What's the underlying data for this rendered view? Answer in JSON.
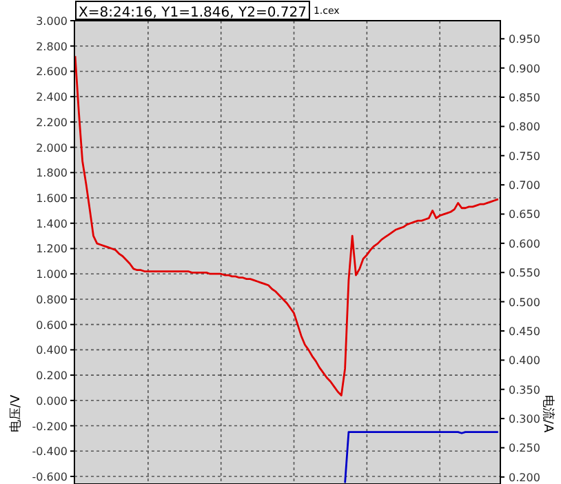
{
  "chart_data": {
    "type": "line",
    "ylabel": "电压/V",
    "y2label": "电流/A",
    "annotations": [
      "X=8:24:16, Y1=1.846, Y2=0.727",
      "1.cex"
    ],
    "categories": [
      null,
      null,
      null,
      null,
      null,
      null,
      null,
      null,
      null,
      null,
      null,
      null,
      null,
      null,
      null,
      null,
      null,
      null,
      null,
      null,
      null,
      null,
      null,
      null,
      null,
      null,
      null,
      null,
      null,
      null,
      null,
      null,
      null,
      null,
      null,
      null,
      null,
      null,
      null,
      null,
      null,
      null,
      null,
      null,
      null,
      null,
      null,
      null,
      null,
      null,
      null,
      null,
      null,
      null,
      null,
      null,
      null,
      null,
      null,
      null,
      null,
      null,
      null,
      null,
      null,
      null,
      null,
      null,
      null,
      null,
      null,
      null,
      null,
      null,
      null,
      null,
      null,
      null,
      null,
      null,
      null,
      null,
      null,
      null,
      null,
      null,
      null,
      null,
      null,
      null,
      null,
      null,
      null,
      null,
      null,
      null,
      null,
      null,
      null,
      null,
      null,
      null,
      null,
      null,
      null,
      null,
      null,
      null,
      null,
      null,
      null,
      null,
      null,
      null,
      null,
      null,
      null
    ],
    "ylim": [
      -0.66,
      3.0
    ],
    "yticks": [
      {
        "value": -0.6,
        "label": "-0.600"
      },
      {
        "value": -0.4,
        "label": "-0.400"
      },
      {
        "value": -0.2,
        "label": "-0.200"
      },
      {
        "value": 0,
        "label": "0.000"
      },
      {
        "value": 0.2,
        "label": "0.200"
      },
      {
        "value": 0.4,
        "label": "0.400"
      },
      {
        "value": 0.6,
        "label": "0.600"
      },
      {
        "value": 0.8,
        "label": "0.800"
      },
      {
        "value": 1.0,
        "label": "1.000"
      },
      {
        "value": 1.2,
        "label": "1.200"
      },
      {
        "value": 1.4,
        "label": "1.400"
      },
      {
        "value": 1.6,
        "label": "1.600"
      },
      {
        "value": 1.8,
        "label": "1.800"
      },
      {
        "value": 2.0,
        "label": "2.000"
      },
      {
        "value": 2.2,
        "label": "2.200"
      },
      {
        "value": 2.4,
        "label": "2.400"
      },
      {
        "value": 2.6,
        "label": "2.600"
      },
      {
        "value": 2.8,
        "label": "2.800"
      },
      {
        "value": 3.0,
        "label": "3.000"
      }
    ],
    "y2lim": [
      0.188,
      0.981
    ],
    "y2ticks": [
      {
        "value": 0.2,
        "label": "0.200"
      },
      {
        "value": 0.25,
        "label": "0.250"
      },
      {
        "value": 0.3,
        "label": "0.300"
      },
      {
        "value": 0.35,
        "label": "0.350"
      },
      {
        "value": 0.4,
        "label": "0.400"
      },
      {
        "value": 0.45,
        "label": "0.450"
      },
      {
        "value": 0.5,
        "label": "0.500"
      },
      {
        "value": 0.55,
        "label": "0.550"
      },
      {
        "value": 0.6,
        "label": "0.600"
      },
      {
        "value": 0.65,
        "label": "0.650"
      },
      {
        "value": 0.7,
        "label": "0.700"
      },
      {
        "value": 0.75,
        "label": "0.750"
      },
      {
        "value": 0.8,
        "label": "0.800"
      },
      {
        "value": 0.85,
        "label": "0.850"
      },
      {
        "value": 0.9,
        "label": "0.900"
      },
      {
        "value": 0.95,
        "label": "0.950"
      }
    ],
    "grid": true,
    "series": [
      {
        "color": "#e00000",
        "values": [
          2.72,
          2.28,
          1.89,
          1.71,
          1.51,
          1.3,
          1.24,
          1.23,
          1.22,
          1.21,
          1.2,
          1.19,
          1.16,
          1.14,
          1.11,
          1.08,
          1.04,
          1.03,
          1.03,
          1.02,
          1.02,
          1.02,
          1.02,
          1.02,
          1.02,
          1.02,
          1.02,
          1.02,
          1.02,
          1.02,
          1.02,
          1.02,
          1.01,
          1.01,
          1.01,
          1.01,
          1.01,
          1.0,
          1.0,
          1.0,
          1.0,
          0.99,
          0.99,
          0.98,
          0.98,
          0.97,
          0.97,
          0.96,
          0.96,
          0.95,
          0.94,
          0.93,
          0.92,
          0.91,
          0.88,
          0.86,
          0.83,
          0.8,
          0.77,
          0.73,
          0.69,
          0.6,
          0.51,
          0.44,
          0.4,
          0.35,
          0.31,
          0.26,
          0.22,
          0.18,
          0.15,
          0.11,
          0.07,
          0.04,
          0.25,
          0.95,
          1.3,
          0.99,
          1.04,
          1.12,
          1.15,
          1.19,
          1.22,
          1.24,
          1.27,
          1.29,
          1.31,
          1.33,
          1.35,
          1.36,
          1.37,
          1.39,
          1.4,
          1.41,
          1.42,
          1.42,
          1.43,
          1.44,
          1.5,
          1.44,
          1.46,
          1.47,
          1.48,
          1.49,
          1.51,
          1.56,
          1.52,
          1.52,
          1.53,
          1.53,
          1.54,
          1.55,
          1.55,
          1.56,
          1.57,
          1.58,
          1.59
        ]
      },
      {
        "color": "#0000c8",
        "axis": "y2",
        "values": [
          null,
          null,
          null,
          null,
          null,
          null,
          null,
          null,
          null,
          null,
          null,
          null,
          null,
          null,
          null,
          null,
          null,
          null,
          null,
          null,
          null,
          null,
          null,
          null,
          null,
          null,
          null,
          null,
          null,
          null,
          null,
          null,
          null,
          null,
          null,
          null,
          null,
          null,
          null,
          null,
          null,
          null,
          null,
          null,
          null,
          null,
          null,
          null,
          null,
          null,
          null,
          null,
          null,
          null,
          null,
          null,
          null,
          null,
          null,
          null,
          null,
          null,
          null,
          null,
          null,
          null,
          null,
          null,
          null,
          null,
          null,
          null,
          null,
          null,
          0.19,
          0.277,
          0.277,
          0.277,
          0.277,
          0.277,
          0.277,
          0.277,
          0.277,
          0.277,
          0.277,
          0.277,
          0.277,
          0.277,
          0.277,
          0.277,
          0.277,
          0.277,
          0.277,
          0.277,
          0.277,
          0.277,
          0.277,
          0.277,
          0.277,
          0.277,
          0.277,
          0.277,
          0.277,
          0.277,
          0.277,
          0.277,
          0.275,
          0.277,
          0.277,
          0.277,
          0.277,
          0.277,
          0.277,
          0.277,
          0.277,
          0.277,
          0.277
        ]
      }
    ]
  }
}
